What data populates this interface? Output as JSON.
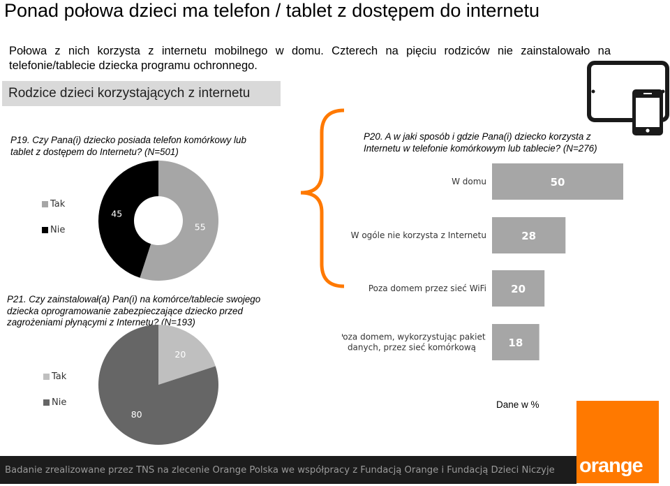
{
  "title": "Ponad połowa dzieci ma telefon / tablet z dostępem do internetu",
  "intro": "Połowa z nich korzysta z internetu mobilnego w domu. Czterech na pięciu rodziców nie zainstalowało na telefonie/tablecie dziecka programu ochronnego.",
  "section_label": "Rodzice dzieci korzystających z internetu",
  "questions": {
    "p19": "P19. Czy Pana(i) dziecko posiada telefon komórkowy lub tablet z dostępem do Internetu? (N=501)",
    "p20": "P20. A w jaki sposób i gdzie Pana(i) dziecko korzysta z Internetu w telefonie komórkowym lub tablecie? (N=276)",
    "p21": "P21. Czy zainstalował(a) Pan(i) na komórce/tablecie swojego dziecka oprogramowanie zabezpieczające dziecko przed zagrożeniami płynącymi z Internetu? (N=193)"
  },
  "legend": {
    "tak": "Tak",
    "nie": "Nie"
  },
  "units_note": "Dane w %",
  "footer": "Badanie zrealizowane przez TNS na zlecenie Orange Polska we współpracy z Fundacją Orange i Fundacją Dzieci Niczyje",
  "logo_text": "orange",
  "colors": {
    "tak_p19": "#a6a6a6",
    "nie_p19": "#000000",
    "tak_p21": "#bfbfbf",
    "nie_p21": "#666666",
    "bars": "#a6a6a6",
    "brand": "#ff7900"
  },
  "icons": [
    "tablet-icon",
    "phone-icon",
    "brace-icon"
  ],
  "chart_data": [
    {
      "type": "pie",
      "variant": "donut",
      "categories": [
        "Tak",
        "Nie"
      ],
      "values": [
        55,
        45
      ],
      "legend_position": "left"
    },
    {
      "type": "bar",
      "orientation": "horizontal",
      "categories": [
        "W domu",
        "W ogóle nie korzysta z Internetu",
        "Poza domem przez sieć WiFi",
        "Poza domem, wykorzystując pakiet danych, przez sieć komórkową"
      ],
      "values": [
        50,
        28,
        20,
        18
      ],
      "xlim": [
        0,
        50
      ]
    },
    {
      "type": "pie",
      "categories": [
        "Tak",
        "Nie"
      ],
      "values": [
        20,
        80
      ],
      "legend_position": "left"
    }
  ]
}
